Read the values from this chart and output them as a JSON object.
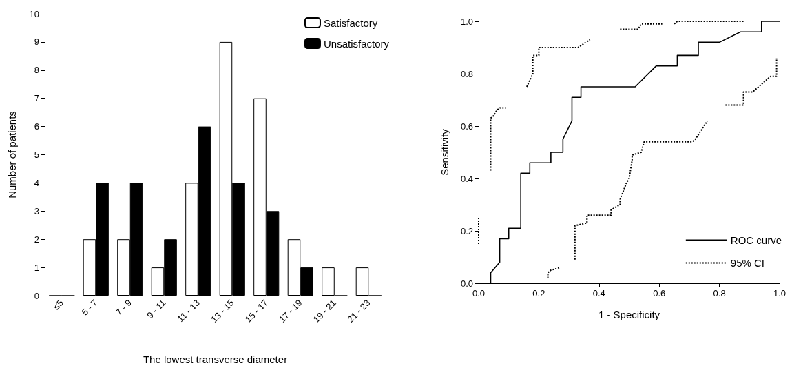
{
  "chart_data": [
    {
      "type": "bar",
      "xlabel": "The lowest transverse diameter",
      "ylabel": "Number of patients",
      "categories": [
        "≤5",
        "5 - 7",
        "7 - 9",
        "9 - 11",
        "11 - 13",
        "13 - 15",
        "15 - 17",
        "17 - 19",
        "19 - 21",
        "21 - 23"
      ],
      "series": [
        {
          "name": "Satisfactory",
          "color": "#ffffff",
          "values": [
            0,
            2,
            2,
            1,
            4,
            9,
            7,
            2,
            1,
            1
          ]
        },
        {
          "name": "Unsatisfactory",
          "color": "#000000",
          "values": [
            0,
            4,
            4,
            2,
            6,
            4,
            3,
            1,
            0,
            0
          ]
        }
      ],
      "ylim": [
        0,
        10
      ],
      "yticks": [
        0,
        1,
        2,
        3,
        4,
        5,
        6,
        7,
        8,
        9,
        10
      ],
      "grid": false,
      "legend": "top right"
    },
    {
      "type": "line",
      "xlabel": "1 - Specificity",
      "ylabel": "Sensitivity",
      "xlim": [
        0,
        1
      ],
      "xticks": [
        {
          "value": 0,
          "label": "0.0"
        },
        0.2,
        0.4,
        0.6,
        0.8,
        {
          "value": 1,
          "label": "1.0"
        }
      ],
      "ylim": [
        0,
        1
      ],
      "yticks": [
        {
          "value": 0,
          "label": "0.0"
        },
        0.2,
        0.4,
        0.6,
        0.8,
        {
          "value": 1,
          "label": "1.0"
        }
      ],
      "grid": false,
      "legend": "bottom right",
      "marker": "none",
      "line_style": "solid",
      "series": [
        {
          "name": "ROC curve",
          "color": "#000000",
          "x": [
            0.04,
            0.04,
            0.07,
            0.07,
            0.1,
            0.1,
            0.14,
            0.14,
            0.17,
            0.17,
            0.24,
            0.24,
            0.28,
            0.28,
            0.31,
            0.31,
            0.34,
            0.34,
            0.52,
            0.59,
            0.66,
            0.66,
            0.73,
            0.73,
            0.8,
            0.87,
            0.94,
            0.94,
            1.0
          ],
          "values": [
            0,
            0.04,
            0.08,
            0.17,
            0.17,
            0.21,
            0.21,
            0.42,
            0.42,
            0.46,
            0.46,
            0.5,
            0.5,
            0.55,
            0.62,
            0.71,
            0.71,
            0.75,
            0.75,
            0.83,
            0.83,
            0.87,
            0.87,
            0.92,
            0.92,
            0.96,
            0.96,
            1.0,
            1.0
          ]
        },
        {
          "name": "95% CI",
          "color": "#000000",
          "line_style": "dotted",
          "x": [
            0,
            0,
            null,
            0.04,
            0.04,
            0.05,
            0.06,
            0.07,
            0.09,
            null,
            0.16,
            0.18,
            0.18,
            0.2,
            0.2,
            0.33,
            0.37,
            null,
            0.47,
            0.53,
            0.54,
            0.61,
            null,
            0.65,
            0.66,
            0.88,
            null,
            0.15,
            0.18,
            null,
            0.23,
            0.23,
            0.24,
            0.27,
            null,
            0.32,
            0.32,
            0.36,
            0.36,
            0.44,
            0.44,
            0.47,
            0.47,
            0.48,
            0.49,
            0.5,
            0.51,
            0.51,
            0.54,
            0.55,
            0.71,
            0.72,
            0.76,
            null,
            0.82,
            0.88,
            0.88,
            0.91,
            0.94,
            0.97,
            0.99,
            0.99
          ],
          "values": [
            0.15,
            0.25,
            null,
            0.43,
            0.63,
            0.64,
            0.66,
            0.67,
            0.67,
            null,
            0.75,
            0.8,
            0.87,
            0.87,
            0.9,
            0.9,
            0.93,
            null,
            0.97,
            0.97,
            0.99,
            0.99,
            null,
            0.99,
            1.0,
            1.0,
            null,
            0,
            0,
            null,
            0.02,
            0.04,
            0.05,
            0.06,
            null,
            0.09,
            0.22,
            0.23,
            0.26,
            0.26,
            0.28,
            0.3,
            0.32,
            0.35,
            0.38,
            0.4,
            0.47,
            0.49,
            0.5,
            0.54,
            0.54,
            0.55,
            0.62,
            null,
            0.68,
            0.68,
            0.73,
            0.73,
            0.76,
            0.79,
            0.79,
            0.86
          ]
        }
      ]
    }
  ]
}
